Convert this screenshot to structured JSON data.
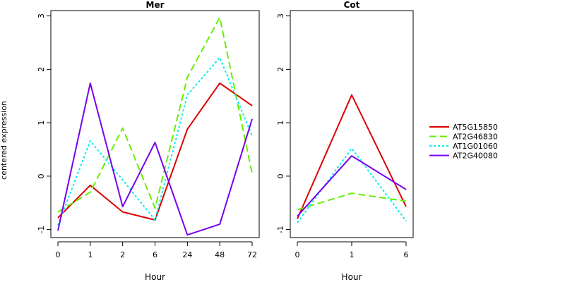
{
  "figure": {
    "ylabel": "centered expression"
  },
  "legend": {
    "placement": "right",
    "items": [
      {
        "label": "AT5G15850",
        "color": "#dd0000",
        "dash": "solid"
      },
      {
        "label": "AT2G46830",
        "color": "#66ee00",
        "dash": "dashed"
      },
      {
        "label": "AT1G01060",
        "color": "#00eeee",
        "dash": "dotted"
      },
      {
        "label": "AT2G40080",
        "color": "#7700ee",
        "dash": "solid"
      }
    ]
  },
  "chart_data": [
    {
      "type": "line",
      "title": "Mer",
      "xlabel": "Hour",
      "ylabel": "centered expression",
      "categories": [
        "0",
        "1",
        "2",
        "6",
        "24",
        "48",
        "72"
      ],
      "ylim": [
        -1.15,
        3.1
      ],
      "yticks": [
        -1,
        0,
        1,
        2,
        3
      ],
      "grid": false,
      "series": [
        {
          "name": "AT5G15850",
          "color": "#dd0000",
          "dash": "solid",
          "values": [
            -0.78,
            -0.17,
            -0.67,
            -0.82,
            0.88,
            1.74,
            1.32
          ]
        },
        {
          "name": "AT2G46830",
          "color": "#66ee00",
          "dash": "dashed",
          "values": [
            -0.67,
            -0.3,
            0.9,
            -0.6,
            1.85,
            2.97,
            0.05
          ]
        },
        {
          "name": "AT1G01060",
          "color": "#00eeee",
          "dash": "dotted",
          "values": [
            -0.92,
            0.66,
            -0.07,
            -0.82,
            1.52,
            2.22,
            0.75
          ]
        },
        {
          "name": "AT2G40080",
          "color": "#7700ee",
          "dash": "solid",
          "values": [
            -1.02,
            1.74,
            -0.57,
            0.63,
            -1.1,
            -0.9,
            1.07
          ]
        }
      ]
    },
    {
      "type": "line",
      "title": "Cot",
      "xlabel": "Hour",
      "categories": [
        "0",
        "1",
        "6"
      ],
      "ylim": [
        -1.15,
        3.1
      ],
      "yticks": [
        -1,
        0,
        1,
        2,
        3
      ],
      "grid": false,
      "series": [
        {
          "name": "AT5G15850",
          "color": "#dd0000",
          "dash": "solid",
          "values": [
            -0.8,
            1.52,
            -0.57
          ]
        },
        {
          "name": "AT2G46830",
          "color": "#66ee00",
          "dash": "dashed",
          "values": [
            -0.63,
            -0.32,
            -0.47
          ]
        },
        {
          "name": "AT1G01060",
          "color": "#00eeee",
          "dash": "dotted",
          "values": [
            -0.87,
            0.52,
            -0.84
          ]
        },
        {
          "name": "AT2G40080",
          "color": "#7700ee",
          "dash": "solid",
          "values": [
            -0.75,
            0.38,
            -0.25
          ]
        }
      ]
    }
  ]
}
